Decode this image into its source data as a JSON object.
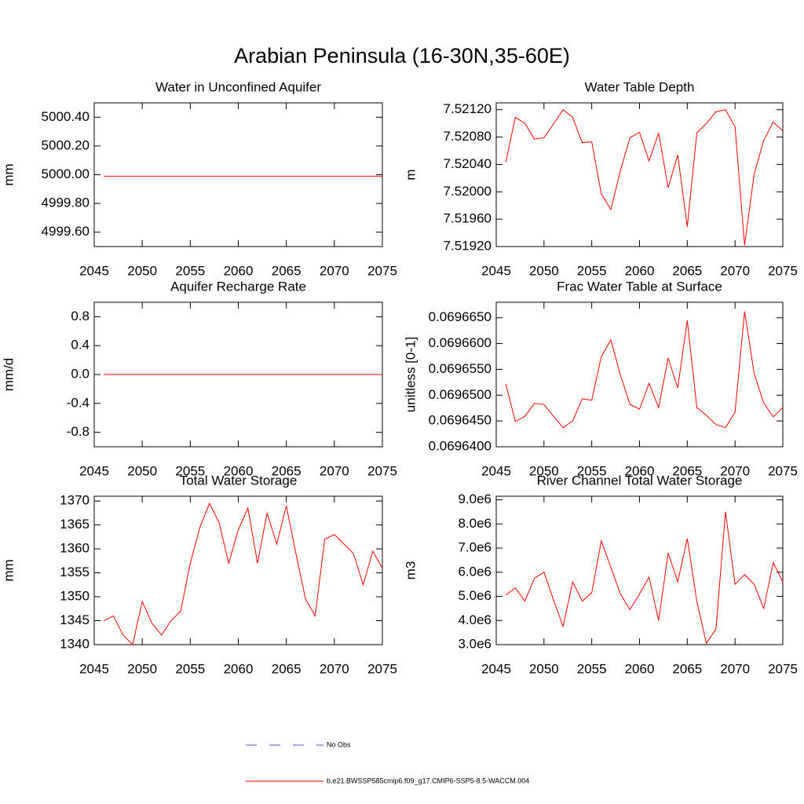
{
  "title": "Arabian Peninsula (16-30N,35-60E)",
  "legend": [
    {
      "name": "No Obs",
      "color": "#5050c8",
      "dashed": true
    },
    {
      "name": "b.e21.BWSSP585cmip6.f09_g17.CMIP6-SSP5-8.5-WACCM.004",
      "color": "#ff0000",
      "dashed": false
    }
  ],
  "chart_data": [
    {
      "type": "line",
      "title": "Water in Unconfined Aquifer",
      "ylabel": "mm",
      "x": [
        2046,
        2047,
        2048,
        2049,
        2050,
        2051,
        2052,
        2053,
        2054,
        2055,
        2056,
        2057,
        2058,
        2059,
        2060,
        2061,
        2062,
        2063,
        2064,
        2065,
        2066,
        2067,
        2068,
        2069,
        2070,
        2071,
        2072,
        2073,
        2074,
        2075
      ],
      "series": [
        {
          "color": "#ff0000",
          "values": [
            4999.99,
            4999.99,
            4999.99,
            4999.99,
            4999.99,
            4999.99,
            4999.99,
            4999.99,
            4999.99,
            4999.99,
            4999.99,
            4999.99,
            4999.99,
            4999.99,
            4999.99,
            4999.99,
            4999.99,
            4999.99,
            4999.99,
            4999.99,
            4999.99,
            4999.99,
            4999.99,
            4999.99,
            4999.99,
            4999.99,
            4999.99,
            4999.99,
            4999.99,
            4999.99
          ]
        }
      ],
      "xlim": [
        2045,
        2075
      ],
      "xticks": [
        2045,
        2050,
        2055,
        2060,
        2065,
        2070,
        2075
      ],
      "ylim": [
        4999.5,
        5000.5
      ],
      "yticks": [
        {
          "value": 4999.6,
          "label": "4999.60"
        },
        {
          "value": 4999.8,
          "label": "4999.80"
        },
        {
          "value": 5000,
          "label": "5000.00"
        },
        {
          "value": 5000.2,
          "label": "5000.20"
        },
        {
          "value": 5000.4,
          "label": "5000.40"
        }
      ]
    },
    {
      "type": "line",
      "title": "Water Table Depth",
      "ylabel": "m",
      "x": [
        2046,
        2047,
        2048,
        2049,
        2050,
        2051,
        2052,
        2053,
        2054,
        2055,
        2056,
        2057,
        2058,
        2059,
        2060,
        2061,
        2062,
        2063,
        2064,
        2065,
        2066,
        2067,
        2068,
        2069,
        2070,
        2071,
        2072,
        2073,
        2074,
        2075
      ],
      "series": [
        {
          "color": "#ff0000",
          "values": [
            7.52043,
            7.52109,
            7.521,
            7.52077,
            7.52079,
            7.52099,
            7.5212,
            7.52109,
            7.52072,
            7.52073,
            7.51997,
            7.51974,
            7.52031,
            7.52079,
            7.52087,
            7.52045,
            7.52086,
            7.52006,
            7.52054,
            7.51949,
            7.52086,
            7.521,
            7.52117,
            7.5212,
            7.52095,
            7.51922,
            7.52026,
            7.52075,
            7.52102,
            7.52089
          ]
        }
      ],
      "xlim": [
        2045,
        2075
      ],
      "xticks": [
        2045,
        2050,
        2055,
        2060,
        2065,
        2070,
        2075
      ],
      "ylim": [
        7.5192,
        7.5213
      ],
      "yticks": [
        {
          "value": 7.5192,
          "label": "7.51920"
        },
        {
          "value": 7.5196,
          "label": "7.51960"
        },
        {
          "value": 7.52,
          "label": "7.52000"
        },
        {
          "value": 7.5204,
          "label": "7.52040"
        },
        {
          "value": 7.5208,
          "label": "7.52080"
        },
        {
          "value": 7.5212,
          "label": "7.52120"
        }
      ]
    },
    {
      "type": "line",
      "title": "Aquifer Recharge Rate",
      "ylabel": "mm/d",
      "x": [
        2046,
        2047,
        2048,
        2049,
        2050,
        2051,
        2052,
        2053,
        2054,
        2055,
        2056,
        2057,
        2058,
        2059,
        2060,
        2061,
        2062,
        2063,
        2064,
        2065,
        2066,
        2067,
        2068,
        2069,
        2070,
        2071,
        2072,
        2073,
        2074,
        2075
      ],
      "series": [
        {
          "color": "#ff0000",
          "values": [
            0,
            0,
            0,
            0,
            0,
            0,
            0,
            0,
            0,
            0,
            0,
            0,
            0,
            0,
            0,
            0,
            0,
            0,
            0,
            0,
            0,
            0,
            0,
            0,
            0,
            0,
            0,
            0,
            0,
            0
          ]
        }
      ],
      "xlim": [
        2045,
        2075
      ],
      "xticks": [
        2045,
        2050,
        2055,
        2060,
        2065,
        2070,
        2075
      ],
      "ylim": [
        -1,
        1
      ],
      "yticks": [
        -0.8,
        -0.4,
        {
          "value": 0,
          "label": "0.0"
        },
        0.4,
        0.8
      ]
    },
    {
      "type": "line",
      "title": "Frac Water Table at Surface",
      "ylabel": "unitless [0-1]",
      "x": [
        2046,
        2047,
        2048,
        2049,
        2050,
        2051,
        2052,
        2053,
        2054,
        2055,
        2056,
        2057,
        2058,
        2059,
        2060,
        2061,
        2062,
        2063,
        2064,
        2065,
        2066,
        2067,
        2068,
        2069,
        2070,
        2071,
        2072,
        2073,
        2074,
        2075
      ],
      "series": [
        {
          "color": "#ff0000",
          "values": [
            0.0696522,
            0.0696449,
            0.0696459,
            0.0696484,
            0.0696482,
            0.0696459,
            0.0696437,
            0.069645,
            0.0696493,
            0.069649,
            0.0696575,
            0.0696607,
            0.0696539,
            0.0696482,
            0.0696473,
            0.0696523,
            0.0696476,
            0.0696572,
            0.0696514,
            0.0696645,
            0.0696476,
            0.0696461,
            0.0696443,
            0.0696437,
            0.0696467,
            0.0696662,
            0.0696542,
            0.0696485,
            0.0696458,
            0.0696476
          ]
        }
      ],
      "xlim": [
        2045,
        2075
      ],
      "xticks": [
        2045,
        2050,
        2055,
        2060,
        2065,
        2070,
        2075
      ],
      "ylim": [
        0.06964,
        0.069668
      ],
      "yticks": [
        {
          "value": 0.06964,
          "label": "0.0696400"
        },
        {
          "value": 0.069645,
          "label": "0.0696450"
        },
        {
          "value": 0.06965,
          "label": "0.0696500"
        },
        {
          "value": 0.069655,
          "label": "0.0696550"
        },
        {
          "value": 0.06966,
          "label": "0.0696600"
        },
        {
          "value": 0.069665,
          "label": "0.0696650"
        }
      ]
    },
    {
      "type": "line",
      "title": "Total Water Storage",
      "ylabel": "mm",
      "x": [
        2046,
        2047,
        2048,
        2049,
        2050,
        2051,
        2052,
        2053,
        2054,
        2055,
        2056,
        2057,
        2058,
        2059,
        2060,
        2061,
        2062,
        2063,
        2064,
        2065,
        2066,
        2067,
        2068,
        2069,
        2070,
        2071,
        2072,
        2073,
        2074,
        2075
      ],
      "series": [
        {
          "color": "#ff0000",
          "values": [
            1345,
            1346,
            1342,
            1340,
            1349,
            1344.5,
            1342,
            1345,
            1347,
            1357,
            1364.5,
            1369.5,
            1365.5,
            1357,
            1364,
            1368.5,
            1357,
            1367.5,
            1361,
            1369,
            1359,
            1349.5,
            1346,
            1362,
            1363,
            1361,
            1359,
            1352.5,
            1359.5,
            1356
          ]
        }
      ],
      "xlim": [
        2045,
        2075
      ],
      "xticks": [
        2045,
        2050,
        2055,
        2060,
        2065,
        2070,
        2075
      ],
      "ylim": [
        1340,
        1371
      ],
      "yticks": [
        1340,
        1345,
        1350,
        1355,
        1360,
        1365,
        1370
      ]
    },
    {
      "type": "line",
      "title": "River Channel Total Water Storage",
      "ylabel": "m3",
      "x": [
        2046,
        2047,
        2048,
        2049,
        2050,
        2051,
        2052,
        2053,
        2054,
        2055,
        2056,
        2057,
        2058,
        2059,
        2060,
        2061,
        2062,
        2063,
        2064,
        2065,
        2066,
        2067,
        2068,
        2069,
        2070,
        2071,
        2072,
        2073,
        2074,
        2075
      ],
      "series": [
        {
          "color": "#ff0000",
          "values": [
            5050000,
            5350000,
            4800000,
            5750000,
            6000000,
            4850000,
            3750000,
            5600000,
            4800000,
            5150000,
            7300000,
            6200000,
            5100000,
            4450000,
            5100000,
            5800000,
            4000000,
            6800000,
            5600000,
            7400000,
            4800000,
            3050000,
            3650000,
            8500000,
            5500000,
            5900000,
            5500000,
            4500000,
            6400000,
            5600000
          ]
        }
      ],
      "xlim": [
        2045,
        2075
      ],
      "xticks": [
        2045,
        2050,
        2055,
        2060,
        2065,
        2070,
        2075
      ],
      "ylim": [
        3000000,
        9150000
      ],
      "yticks": [
        {
          "value": 3000000,
          "label": "3.0e6"
        },
        {
          "value": 4000000,
          "label": "4.0e6"
        },
        {
          "value": 5000000,
          "label": "5.0e6"
        },
        {
          "value": 6000000,
          "label": "6.0e6"
        },
        {
          "value": 7000000,
          "label": "7.0e6"
        },
        {
          "value": 8000000,
          "label": "8.0e6"
        },
        {
          "value": 9000000,
          "label": "9.0e6"
        }
      ]
    }
  ]
}
